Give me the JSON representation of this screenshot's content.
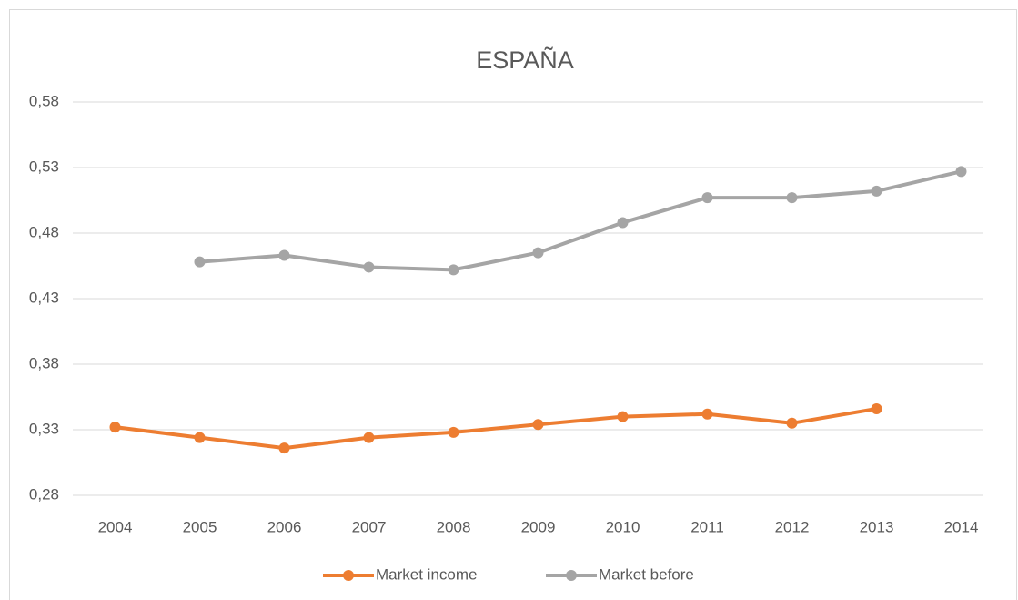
{
  "chart_data": {
    "type": "line",
    "title": "ESPAÑA",
    "categories": [
      "2004",
      "2005",
      "2006",
      "2007",
      "2008",
      "2009",
      "2010",
      "2011",
      "2012",
      "2013",
      "2014"
    ],
    "series": [
      {
        "name": "Market income",
        "color": "#ed7d31",
        "values": [
          0.332,
          0.324,
          0.316,
          0.324,
          0.328,
          0.334,
          0.34,
          0.342,
          0.335,
          0.346,
          null
        ]
      },
      {
        "name": "Market before",
        "color": "#a5a5a5",
        "values": [
          null,
          0.458,
          0.463,
          0.454,
          0.452,
          0.465,
          0.488,
          0.507,
          0.507,
          0.512,
          0.527
        ]
      }
    ],
    "ylim": [
      0.28,
      0.58
    ],
    "yticks": [
      {
        "value": 0.28,
        "label": "0,28"
      },
      {
        "value": 0.33,
        "label": "0,33"
      },
      {
        "value": 0.38,
        "label": "0,38"
      },
      {
        "value": 0.43,
        "label": "0,43"
      },
      {
        "value": 0.48,
        "label": "0,48"
      },
      {
        "value": 0.53,
        "label": "0,53"
      },
      {
        "value": 0.58,
        "label": "0,58"
      }
    ],
    "grid": true,
    "legend": "bottom"
  }
}
